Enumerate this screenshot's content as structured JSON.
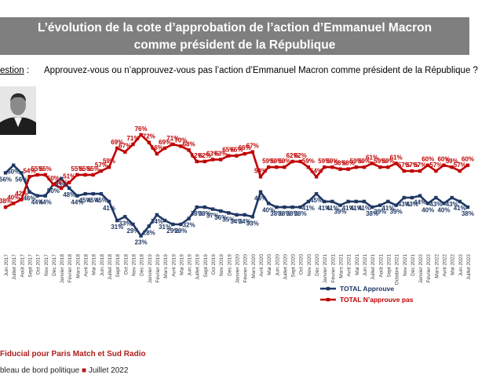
{
  "title": {
    "line1": "L’évolution de la cote d’approbation de l’action d’Emmanuel Macron",
    "line2": "comme président de la République"
  },
  "question": {
    "label": "estion",
    "separator": ":",
    "text": "Approuvez-vous ou n’approuvez-vous pas l’action d’Emmanuel Macron comme président de la République ?"
  },
  "footer": {
    "source": "Fiducial pour Paris Match et Sud Radio",
    "publication": "bleau de bord politique",
    "bullet": "■",
    "date": "Juillet 2022"
  },
  "colors": {
    "approve": "#1f3864",
    "disapprove": "#c00000",
    "banner": "#7f7f7f"
  },
  "chart_data": {
    "type": "line",
    "x": [
      "Juin 2017",
      "Juillet 2017",
      "Août 2017",
      "Sept 2017",
      "Oct 2017",
      "Nov 2017",
      "Déc 2017",
      "Janvier 2018",
      "Février 2018",
      "Mars 2018",
      "Avril 2018",
      "Mai 2018",
      "Juin 2018",
      "Juillet 2018",
      "Sept 2018",
      "Oct 2018",
      "Nov 2018",
      "Déc 2018",
      "Janvier 2019",
      "Février 2019",
      "Mars 2019",
      "Avril 2019",
      "Mai 2019",
      "Juin 2019",
      "Juillet 2019",
      "Sept 2019",
      "Oct 2019",
      "Nov 2019",
      "Déc 2019",
      "Janvier 2020",
      "Février 2020",
      "Mars 2020",
      "Avril 2020",
      "Mai 2020",
      "Juin 2020",
      "Juillet 2020",
      "Sept 2020",
      "Oct 2020",
      "Nov 2020",
      "Déc 2020",
      "Janvier 2021",
      "Février 2021",
      "Mars 2021",
      "Avril 2021",
      "Mai 2021",
      "Juin 2021",
      "Juillet 2021",
      "Août 2021",
      "Sept 2021",
      "Octobre 2021",
      "Nov 2021",
      "Déc 2021",
      "Janvier 2022",
      "Février 2022",
      "Mars 2022",
      "Avril 2022",
      "Mai 2022",
      "Juin 2022",
      "Juillet 2022"
    ],
    "series": [
      {
        "name": "TOTAL Approuve",
        "values": [
          56,
          60,
          56,
          46,
          44,
          44,
          50,
          53,
          48,
          44,
          45,
          45,
          45,
          41,
          31,
          33,
          29,
          23,
          28,
          34,
          31,
          29,
          29,
          32,
          38,
          38,
          37,
          36,
          35,
          34,
          34,
          33,
          46,
          40,
          38,
          38,
          38,
          38,
          41,
          45,
          41,
          41,
          39,
          41,
          41,
          41,
          38,
          39,
          41,
          39,
          43,
          43,
          44,
          40,
          43,
          40,
          43,
          41,
          38
        ],
        "labels": [
          "56%",
          "60%",
          "56%",
          "46%",
          "44%",
          "44%",
          "50%",
          "53%",
          "48%",
          "44%",
          "45%",
          "45%",
          "45%",
          "41%",
          "31%",
          "33%",
          "29%",
          "23%",
          "28%",
          "34%",
          "31%",
          "29%",
          "29%",
          "32%",
          "38%",
          "38%",
          "37%",
          "36%",
          "35%",
          "34%",
          "34%",
          "33%",
          "46%",
          "40%",
          "38%",
          "38%",
          "38%",
          "38%",
          "41%",
          "45%",
          "41%",
          "41%",
          "39%",
          "41%",
          "41%",
          "41%",
          "38%",
          "39%",
          "41%",
          "39%",
          "43%",
          "43%",
          "44%",
          "40%",
          "43%",
          "40%",
          "43%",
          "41%",
          "38%"
        ]
      },
      {
        "name": "TOTAL N’approuve pas",
        "values": [
          38,
          40,
          42,
          54,
          55,
          55,
          50,
          48,
          51,
          55,
          55,
          55,
          57,
          59,
          69,
          67,
          71,
          76,
          72,
          66,
          69,
          71,
          70,
          68,
          62,
          62,
          63,
          63,
          65,
          65,
          66,
          67,
          54,
          59,
          59,
          59,
          62,
          62,
          59,
          54,
          59,
          59,
          58,
          58,
          59,
          59,
          61,
          59,
          59,
          61,
          57,
          57,
          57,
          60,
          57,
          60,
          59,
          57,
          60
        ],
        "labels": [
          "38%",
          "40%",
          "42%",
          "54%",
          "55%",
          "55%",
          "50%",
          "48%",
          "51%",
          "55%",
          "55%",
          "55%",
          "57%",
          "59%",
          "69%",
          "67%",
          "71%",
          "76%",
          "72%",
          "66%",
          "69%",
          "71%",
          "70%",
          "68%",
          "62%",
          "62%",
          "63%",
          "63%",
          "65%",
          "65%",
          "66%",
          "67%",
          "54%",
          "59%",
          "59%",
          "59%",
          "62%",
          "62%",
          "59%",
          "54%",
          "59%",
          "59%",
          "58%",
          "58%",
          "59%",
          "59%",
          "61%",
          "59%",
          "59%",
          "61%",
          "57%",
          "57%",
          "57%",
          "60%",
          "57%",
          "60%",
          "59%",
          "57%",
          "60%"
        ]
      }
    ],
    "ylim": [
      15,
      85
    ],
    "title": "",
    "xlabel": "",
    "ylabel": "",
    "grid": false,
    "legend": "bottom-right"
  }
}
